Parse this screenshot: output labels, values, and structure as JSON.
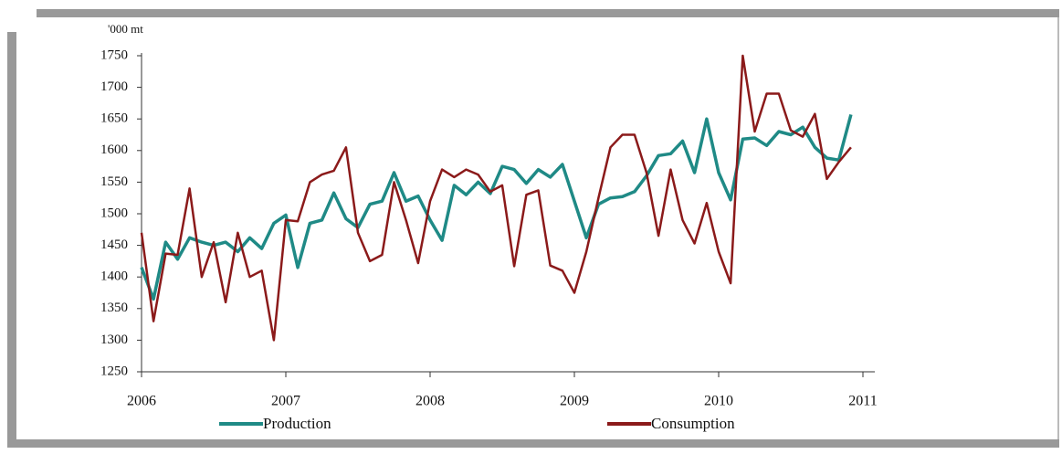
{
  "chart_data": {
    "type": "line",
    "y_label": "'000 mt",
    "x": [
      2006,
      2006.083,
      2006.167,
      2006.25,
      2006.333,
      2006.417,
      2006.5,
      2006.583,
      2006.667,
      2006.75,
      2006.833,
      2006.917,
      2007,
      2007.083,
      2007.167,
      2007.25,
      2007.333,
      2007.417,
      2007.5,
      2007.583,
      2007.667,
      2007.75,
      2007.833,
      2007.917,
      2008,
      2008.083,
      2008.167,
      2008.25,
      2008.333,
      2008.417,
      2008.5,
      2008.583,
      2008.667,
      2008.75,
      2008.833,
      2008.917,
      2009,
      2009.083,
      2009.167,
      2009.25,
      2009.333,
      2009.417,
      2009.5,
      2009.583,
      2009.667,
      2009.75,
      2009.833,
      2009.917,
      2010,
      2010.083,
      2010.167,
      2010.25,
      2010.333,
      2010.417,
      2010.5,
      2010.583,
      2010.667,
      2010.75,
      2010.833,
      2010.917
    ],
    "series": [
      {
        "name": "Production",
        "color": "#1f8a86",
        "values": [
          1415,
          1365,
          1455,
          1428,
          1462,
          1455,
          1450,
          1455,
          1440,
          1462,
          1445,
          1485,
          1498,
          1415,
          1485,
          1490,
          1533,
          1492,
          1478,
          1515,
          1520,
          1565,
          1520,
          1528,
          1490,
          1458,
          1545,
          1530,
          1550,
          1532,
          1575,
          1570,
          1548,
          1570,
          1558,
          1578,
          1520,
          1462,
          1515,
          1525,
          1527,
          1535,
          1560,
          1592,
          1595,
          1615,
          1565,
          1650,
          1565,
          1522,
          1618,
          1620,
          1608,
          1630,
          1625,
          1637,
          1605,
          1588,
          1585,
          1657
        ]
      },
      {
        "name": "Consumption",
        "color": "#8b1a1a",
        "values": [
          1470,
          1330,
          1437,
          1435,
          1540,
          1400,
          1455,
          1360,
          1470,
          1400,
          1410,
          1300,
          1490,
          1488,
          1550,
          1562,
          1568,
          1605,
          1470,
          1425,
          1435,
          1550,
          1490,
          1422,
          1520,
          1570,
          1558,
          1570,
          1562,
          1535,
          1545,
          1417,
          1530,
          1537,
          1418,
          1410,
          1375,
          1440,
          1525,
          1605,
          1625,
          1625,
          1565,
          1465,
          1570,
          1490,
          1453,
          1517,
          1440,
          1390,
          1750,
          1630,
          1690,
          1690,
          1632,
          1622,
          1658,
          1555,
          1582,
          1605
        ]
      }
    ],
    "xlim": [
      2006,
      2011
    ],
    "xticks": [
      2006,
      2007,
      2008,
      2009,
      2010,
      2011
    ],
    "ylim": [
      1250,
      1750
    ],
    "yticks": [
      1250,
      1300,
      1350,
      1400,
      1450,
      1500,
      1550,
      1600,
      1650,
      1700,
      1750
    ],
    "grid": false
  }
}
